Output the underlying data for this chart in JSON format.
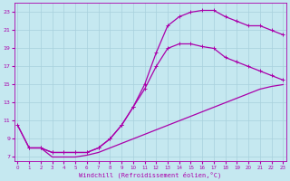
{
  "xlabel": "Windchill (Refroidissement éolien,°C)",
  "background_color": "#c5e8f0",
  "grid_color": "#a8d0dc",
  "line_color": "#aa00aa",
  "x_ticks": [
    0,
    1,
    2,
    3,
    4,
    5,
    6,
    7,
    8,
    9,
    10,
    11,
    12,
    13,
    14,
    15,
    16,
    17,
    18,
    19,
    20,
    21,
    22,
    23
  ],
  "y_ticks": [
    7,
    9,
    11,
    13,
    15,
    17,
    19,
    21,
    23
  ],
  "xlim": [
    -0.3,
    23.3
  ],
  "ylim": [
    6.5,
    24.0
  ],
  "line1_x": [
    0,
    1,
    2,
    3,
    4,
    5,
    6,
    7,
    8,
    9,
    10,
    11,
    12,
    13,
    14,
    15,
    16,
    17,
    18,
    19,
    20,
    21,
    22,
    23
  ],
  "line1_y": [
    10.5,
    8.0,
    8.0,
    7.0,
    7.0,
    7.0,
    7.2,
    7.5,
    8.0,
    8.5,
    9.0,
    9.5,
    10.0,
    10.5,
    11.0,
    11.5,
    12.0,
    12.5,
    13.0,
    13.5,
    14.0,
    14.5,
    14.8,
    15.0
  ],
  "line2_x": [
    0,
    1,
    2,
    3,
    4,
    5,
    6,
    7,
    8,
    9,
    10,
    11,
    12,
    13,
    14,
    15,
    16,
    17,
    18,
    19,
    20,
    21,
    22,
    23
  ],
  "line2_y": [
    10.5,
    8.0,
    8.0,
    7.5,
    7.5,
    7.5,
    7.5,
    8.0,
    9.0,
    10.5,
    12.5,
    14.5,
    17.0,
    19.0,
    19.5,
    19.5,
    19.2,
    19.0,
    18.0,
    17.5,
    17.0,
    16.5,
    16.0,
    15.5
  ],
  "line3_x": [
    1,
    2,
    3,
    4,
    5,
    6,
    7,
    8,
    9,
    10,
    11,
    12,
    13,
    14,
    15,
    16,
    17,
    18,
    19,
    20,
    21,
    22,
    23
  ],
  "line3_y": [
    8.0,
    8.0,
    7.5,
    7.5,
    7.5,
    7.5,
    8.0,
    9.0,
    10.5,
    12.5,
    15.0,
    18.5,
    21.5,
    22.5,
    23.0,
    23.2,
    23.2,
    22.5,
    22.0,
    21.5,
    21.5,
    21.0,
    20.5
  ],
  "line3_marker_x": [
    1,
    2,
    3,
    4,
    5,
    6,
    7,
    8,
    9,
    10,
    11,
    12,
    13,
    14,
    15,
    16,
    17,
    18,
    19,
    20,
    21,
    22,
    23
  ],
  "line3_marker_y": [
    8.0,
    8.0,
    7.5,
    7.5,
    7.5,
    7.5,
    8.0,
    9.0,
    10.5,
    12.5,
    15.0,
    18.5,
    21.5,
    22.5,
    23.0,
    23.2,
    23.2,
    22.5,
    22.0,
    21.5,
    21.5,
    21.0,
    20.5
  ]
}
